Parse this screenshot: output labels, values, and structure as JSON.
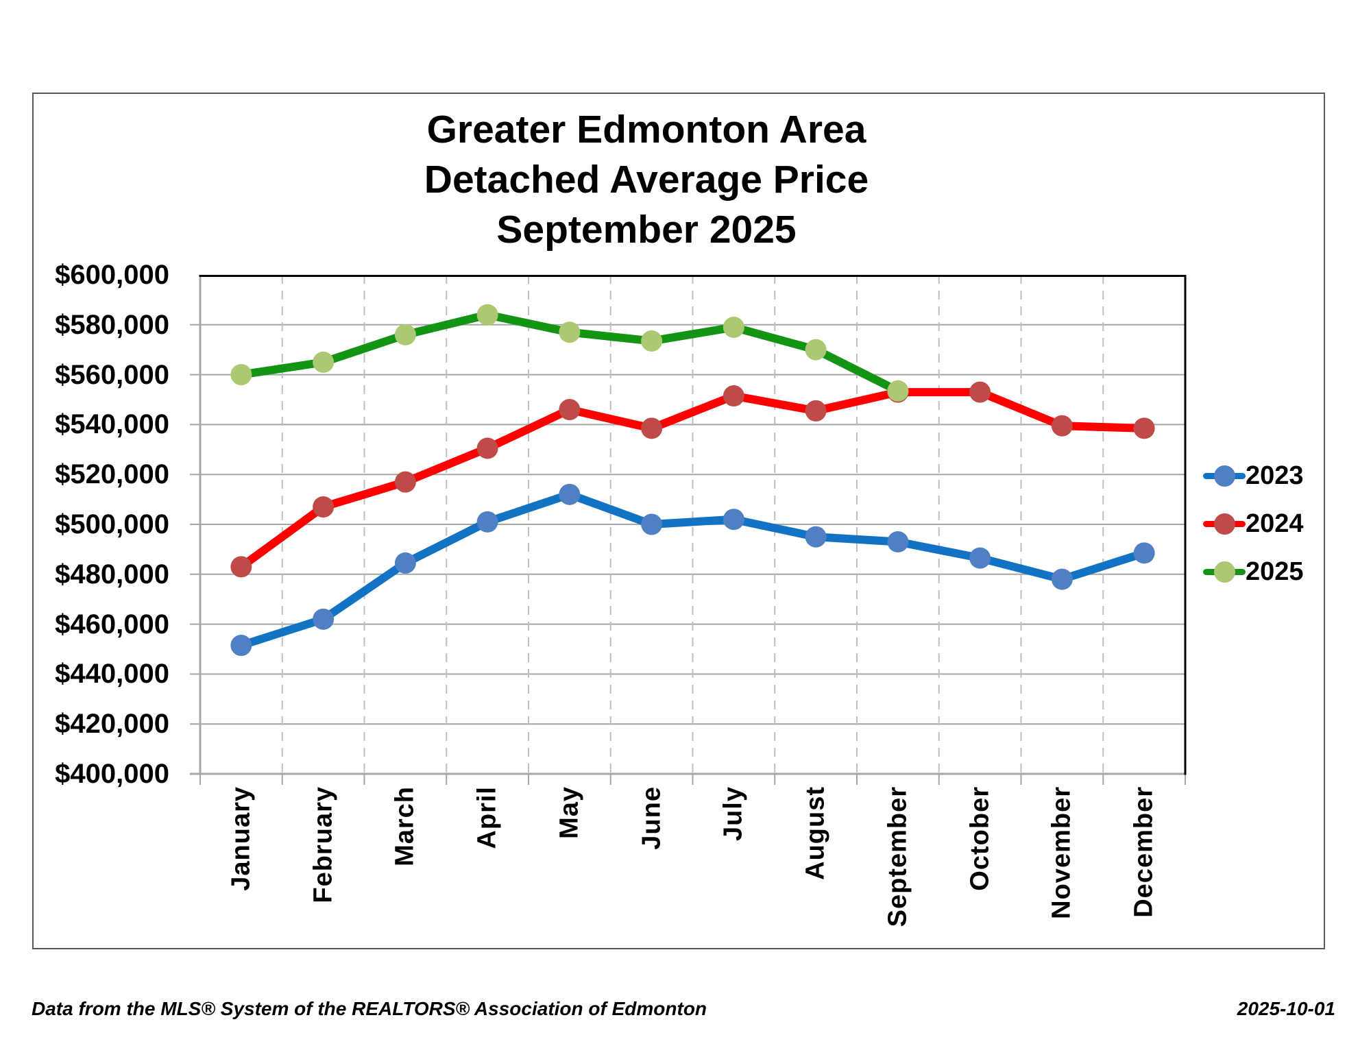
{
  "title": {
    "line1": "Greater Edmonton Area",
    "line2": "Detached Average Price",
    "line3": "September 2025"
  },
  "chart_data": {
    "type": "line",
    "categories": [
      "January",
      "February",
      "March",
      "April",
      "May",
      "June",
      "July",
      "August",
      "September",
      "October",
      "November",
      "December"
    ],
    "series": [
      {
        "name": "2023",
        "line_color": "#1273C4",
        "marker_color": "#5080C4",
        "values": [
          451500,
          462000,
          484500,
          501000,
          512000,
          500000,
          502000,
          495000,
          493000,
          486500,
          478000,
          488500
        ]
      },
      {
        "name": "2024",
        "line_color": "#FE0000",
        "marker_color": "#BE4B48",
        "values": [
          483000,
          507000,
          517000,
          530500,
          546000,
          538500,
          551500,
          545500,
          553000,
          553000,
          539500,
          538500
        ]
      },
      {
        "name": "2025",
        "line_color": "#149414",
        "marker_color": "#ADC873",
        "values": [
          560000,
          565000,
          576000,
          584000,
          577000,
          573500,
          579000,
          570000,
          553500
        ]
      }
    ],
    "ylim": [
      400000,
      600000
    ],
    "ytick_step": 20000,
    "ytick_labels": [
      "$600,000",
      "$580,000",
      "$560,000",
      "$540,000",
      "$520,000",
      "$500,000",
      "$480,000",
      "$460,000",
      "$440,000",
      "$420,000",
      "$400,000"
    ],
    "legend_position": "right",
    "grid": {
      "horizontal": "solid",
      "vertical": "dashed"
    },
    "colors": {
      "solid_gridline": "#A6A6A6",
      "dashed_gridline": "#BFBFBF",
      "axis_line": "#A6A6A6",
      "plot_border": "#000000",
      "figure_border": "#595959"
    }
  },
  "footer": {
    "left": "Data from the MLS® System of the REALTORS® Association of Edmonton",
    "right": "2025-10-01"
  }
}
